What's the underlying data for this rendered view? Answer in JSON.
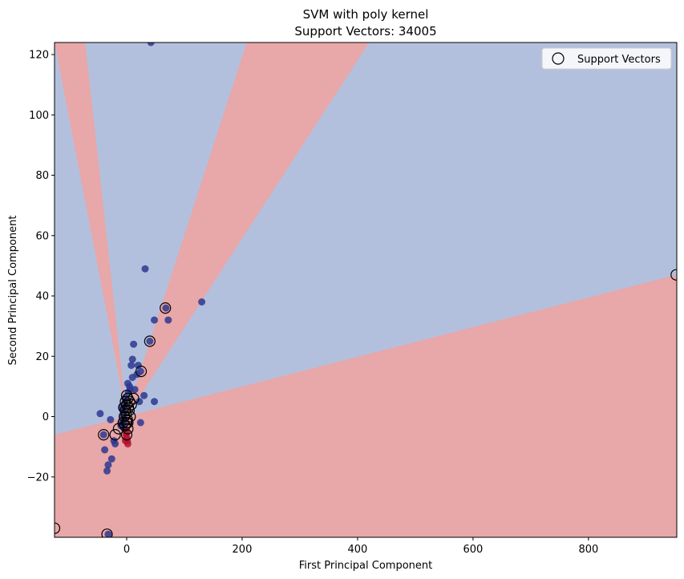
{
  "chart_data": {
    "type": "scatter",
    "title": "SVM with poly kernel",
    "subtitle": "Support Vectors: 34005",
    "xlabel": "First Principal Component",
    "ylabel": "Second Principal Component",
    "xlim": [
      -125,
      953
    ],
    "ylim": [
      -40,
      124
    ],
    "xticks": [
      0,
      200,
      400,
      600,
      800
    ],
    "yticks": [
      -20,
      0,
      20,
      40,
      60,
      80,
      100,
      120
    ],
    "xtick_labels": [
      "0",
      "200",
      "400",
      "600",
      "800"
    ],
    "ytick_labels": [
      "−20",
      "0",
      "20",
      "40",
      "60",
      "80",
      "100",
      "120"
    ],
    "grid": false,
    "legend": {
      "placement": "top-right",
      "entries": [
        "Support Vectors"
      ]
    },
    "colors": {
      "region_blue": "#b3c0dd",
      "region_red": "#e8a7a8",
      "point_blue": "#2e3791",
      "point_red": "#b5122e",
      "support_vector_edge": "#000000"
    },
    "decision_regions": {
      "background_class": "blue",
      "red_regions": [
        [
          [
            -125,
            -6
          ],
          [
            953,
            47
          ],
          [
            953,
            -40
          ],
          [
            -125,
            -40
          ]
        ],
        [
          [
            -125,
            -40
          ],
          [
            -70,
            -40
          ],
          [
            -2,
            0
          ],
          [
            208,
            124
          ],
          [
            420,
            124
          ],
          [
            0,
            0
          ]
        ],
        [
          [
            0,
            0
          ],
          [
            -72,
            124
          ],
          [
            -125,
            124
          ]
        ]
      ]
    },
    "series": [
      {
        "name": "class-blue",
        "color": "#2e3791",
        "points": [
          [
            42,
            124
          ],
          [
            32,
            49
          ],
          [
            130,
            38
          ],
          [
            68,
            36
          ],
          [
            72,
            32
          ],
          [
            48,
            32
          ],
          [
            40,
            25
          ],
          [
            12,
            24
          ],
          [
            10,
            19
          ],
          [
            20,
            17
          ],
          [
            24,
            15
          ],
          [
            8,
            17
          ],
          [
            18,
            14
          ],
          [
            10,
            13
          ],
          [
            30,
            7
          ],
          [
            48,
            5
          ],
          [
            22,
            5
          ],
          [
            24,
            -2
          ],
          [
            -46,
            1
          ],
          [
            -28,
            -1
          ],
          [
            -40,
            -6
          ],
          [
            -22,
            -8
          ],
          [
            -20,
            -9
          ],
          [
            -38,
            -11
          ],
          [
            -26,
            -14
          ],
          [
            -32,
            -16
          ],
          [
            -34,
            -18
          ],
          [
            -32,
            -39
          ],
          [
            5,
            10
          ],
          [
            3,
            8
          ],
          [
            -3,
            6
          ],
          [
            -4,
            4
          ],
          [
            -6,
            2
          ],
          [
            -6,
            0
          ],
          [
            -5,
            -2
          ],
          [
            -4,
            -4
          ],
          [
            2,
            11
          ],
          [
            6,
            9
          ],
          [
            14,
            9
          ],
          [
            -8,
            3
          ],
          [
            -8,
            -2
          ],
          [
            -10,
            -3
          ]
        ]
      },
      {
        "name": "class-red",
        "color": "#b5122e",
        "points": [
          [
            0,
            -7
          ],
          [
            1,
            -8
          ],
          [
            2,
            -9
          ],
          [
            -1,
            -6
          ],
          [
            -2,
            -8
          ],
          [
            0,
            -5
          ]
        ]
      }
    ],
    "support_vectors": [
      [
        -125,
        -37
      ],
      [
        -34,
        -39
      ],
      [
        -40,
        -6
      ],
      [
        -20,
        -6
      ],
      [
        -14,
        -4
      ],
      [
        -6,
        -2
      ],
      [
        -4,
        0
      ],
      [
        -2,
        2
      ],
      [
        0,
        4
      ],
      [
        2,
        6
      ],
      [
        0,
        -2
      ],
      [
        2,
        -4
      ],
      [
        0,
        -6
      ],
      [
        4,
        2
      ],
      [
        6,
        0
      ],
      [
        8,
        4
      ],
      [
        12,
        6
      ],
      [
        25,
        15
      ],
      [
        40,
        25
      ],
      [
        67,
        36
      ],
      [
        952,
        47
      ],
      [
        -2,
        5
      ],
      [
        0,
        7
      ],
      [
        -1,
        1
      ],
      [
        1,
        -1
      ],
      [
        3,
        3
      ],
      [
        -3,
        -3
      ],
      [
        5,
        5
      ],
      [
        -5,
        3
      ],
      [
        2,
        -2
      ]
    ]
  }
}
